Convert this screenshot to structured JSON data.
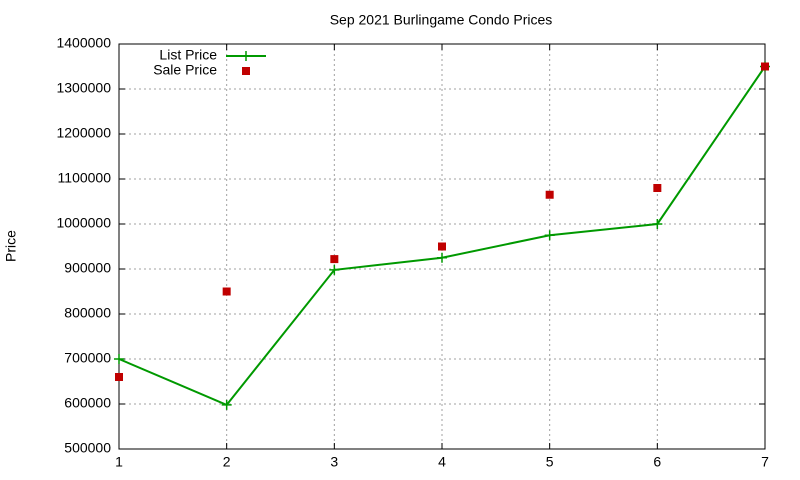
{
  "chart_data": {
    "type": "line",
    "title": "Sep 2021 Burlingame Condo Prices",
    "ylabel": "Price",
    "x": [
      1,
      2,
      3,
      4,
      5,
      6,
      7
    ],
    "series": [
      {
        "name": "List Price",
        "color": "#009900",
        "style": "linespoints",
        "values": [
          700000,
          598000,
          898000,
          925000,
          975000,
          1000000,
          1350000
        ]
      },
      {
        "name": "Sale Price",
        "color": "#c00000",
        "style": "points",
        "values": [
          660000,
          850000,
          922000,
          950000,
          1065000,
          1080000,
          1350000
        ]
      }
    ],
    "xlim": [
      1,
      7
    ],
    "xticks": [
      1,
      2,
      3,
      4,
      5,
      6,
      7
    ],
    "ylim": [
      500000,
      1400000
    ],
    "yticks": [
      500000,
      600000,
      700000,
      800000,
      900000,
      1000000,
      1100000,
      1200000,
      1300000,
      1400000
    ],
    "grid": true,
    "legend": "top-left"
  }
}
